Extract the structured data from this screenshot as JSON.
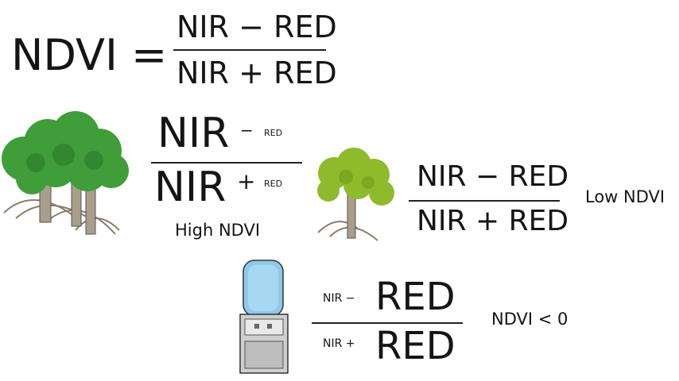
{
  "main_formula": {
    "lhs": "NDVI =",
    "numerator": "NIR − RED",
    "denominator": "NIR + RED"
  },
  "high_example": {
    "num_big": "NIR",
    "num_op": "−",
    "num_small": "RED",
    "den_big": "NIR",
    "den_op": "+",
    "den_small": "RED",
    "label": "High NDVI"
  },
  "low_example": {
    "numerator": "NIR − RED",
    "denominator": "NIR + RED",
    "label": "Low NDVI"
  },
  "negative_example": {
    "num_small": "NIR −",
    "num_big": "RED",
    "den_small": "NIR +",
    "den_big": "RED",
    "label": "NDVI < 0"
  },
  "colors": {
    "ink": "#151515",
    "tree_green": "#3f9d3a",
    "sparse_tree_green": "#8dbb2c",
    "trunk": "#8a7c66",
    "water": "#8ec9ea"
  }
}
